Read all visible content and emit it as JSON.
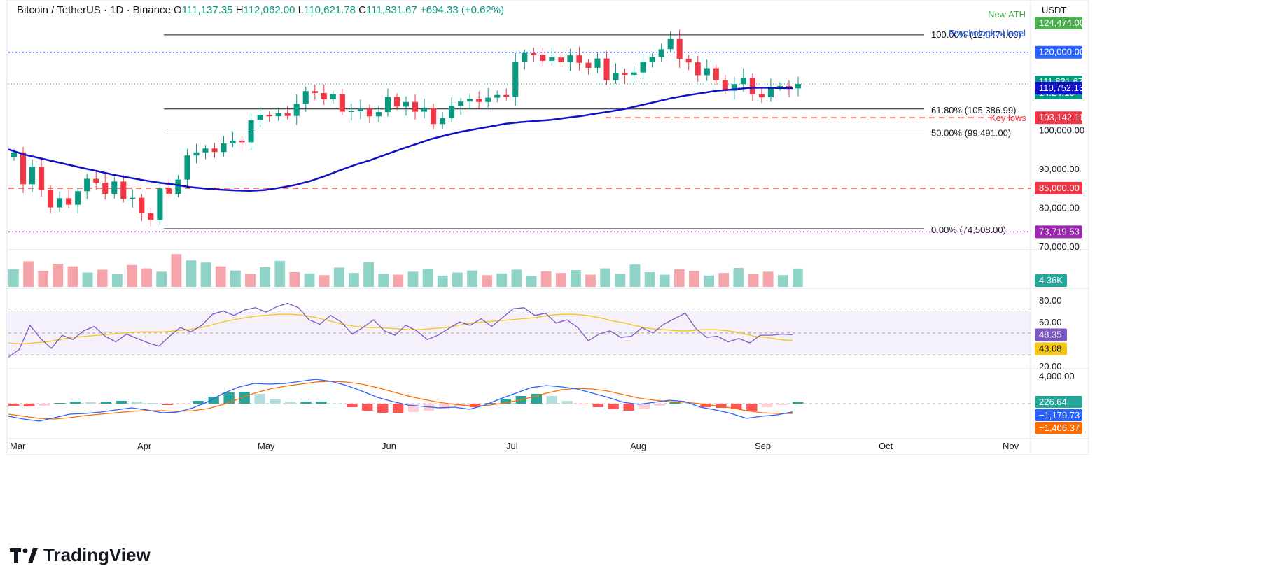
{
  "header": {
    "symbol": "Bitcoin / TetherUS · 1D · Binance",
    "open_label": "O",
    "open": "111,137.35",
    "high_label": "H",
    "high": "112,062.00",
    "low_label": "L",
    "low": "110,621.78",
    "close_label": "C",
    "close": "111,831.67",
    "change": "+694.33 (+0.62%)"
  },
  "currency": "USDT",
  "brand": "TradingView",
  "colors": {
    "up": "#089981",
    "down": "#f23645",
    "ma": "#1010c8",
    "rsi": "#7e57c2",
    "rsi_ma": "#f5c518",
    "macd": "#2962ff",
    "signal": "#ff6d00",
    "support": "#e53935",
    "resistance": "#2962ff",
    "fib": "#131722",
    "low": "#9c27b0"
  },
  "chart_data": [
    {
      "type": "candlestick",
      "panel": "price",
      "x_ticks": [
        "Mar",
        "Apr",
        "May",
        "Jun",
        "Jul",
        "Aug",
        "Sep",
        "Oct",
        "Nov"
      ],
      "y_ticks": [
        "70,000.00",
        "80,000.00",
        "90,000.00",
        "100,000.00"
      ],
      "y_range": [
        70000,
        125000
      ],
      "lines": [
        {
          "label": "100.00% (124,474.00)",
          "value": 124474,
          "style": "solid"
        },
        {
          "label": "61.80% (105,386.99)",
          "value": 105387,
          "style": "solid"
        },
        {
          "label": "50.00% (99,491.00)",
          "value": 99491,
          "style": "solid"
        },
        {
          "label": "0.00% (74,508.00)",
          "value": 74508,
          "style": "solid"
        },
        {
          "label": "Psychological level",
          "value": 120000,
          "style": "dotted"
        },
        {
          "label": "Key lows",
          "value": 103142,
          "style": "dashed"
        },
        {
          "label": "",
          "value": 85000,
          "style": "dashed"
        }
      ],
      "annotations": [
        "New ATH",
        "Psychological level",
        "Key lows"
      ],
      "price_tags": [
        {
          "text": "124,474.00",
          "value": 124474,
          "color": "#4caf50"
        },
        {
          "text": "120,000.00",
          "value": 120000,
          "color": "#2962ff"
        },
        {
          "text": "111,831.67",
          "sub": "14:24:10",
          "value": 111831.67,
          "color": "#089981"
        },
        {
          "text": "110,752.13",
          "value": 110752.13,
          "color": "#1010c8"
        },
        {
          "text": "103,142.11",
          "value": 103142.11,
          "color": "#f23645"
        },
        {
          "text": "85,000.00",
          "value": 85000,
          "color": "#f23645"
        },
        {
          "text": "73,719.53",
          "value": 73719.53,
          "color": "#9c27b0"
        }
      ],
      "series": [
        {
          "name": "Close",
          "values": [
            94200,
            86000,
            90500,
            84500,
            80000,
            82400,
            80700,
            84200,
            87400,
            86400,
            83500,
            86700,
            82200,
            82500,
            78500,
            76800,
            84900,
            83500,
            87200,
            93400,
            94200,
            95200,
            94300,
            96500,
            97200,
            96800,
            102500,
            103900,
            103500,
            104300,
            103600,
            106700,
            110000,
            109500,
            107900,
            109200,
            104700,
            104800,
            105400,
            103500,
            104600,
            108500,
            106000,
            107200,
            104700,
            105600,
            101500,
            103000,
            106200,
            107300,
            108000,
            107200,
            108300,
            109000,
            108500,
            117600,
            119800,
            119300,
            117800,
            118700,
            117500,
            119200,
            117300,
            116000,
            118400,
            112800,
            114700,
            114200,
            114800,
            117500,
            118800,
            120800,
            123400,
            118300,
            117400,
            114100,
            115900,
            112800,
            110100,
            111800,
            113400,
            109200,
            108400,
            111000,
            111300,
            110700,
            111800
          ]
        },
        {
          "name": "MA",
          "values": [
            95000,
            93700,
            92800,
            91900,
            91000,
            90100,
            89300,
            88400,
            87700,
            87000,
            86400,
            85900,
            85300,
            84900,
            84600,
            84400,
            84300,
            84500,
            85100,
            85800,
            86800,
            88100,
            89600,
            91000,
            92200,
            93600,
            95000,
            96300,
            97600,
            98600,
            99500,
            100200,
            100900,
            101600,
            102000,
            102300,
            102600,
            103100,
            103600,
            104200,
            104800,
            105500,
            106400,
            107300,
            108200,
            108900,
            109500,
            110100,
            110400,
            110800,
            110900,
            110800,
            110752
          ]
        },
        {
          "name": "Volume",
          "values": [
            4.2,
            6.1,
            3.8,
            5.5,
            4.9,
            3.4,
            4.1,
            3.0,
            5.2,
            4.4,
            3.6,
            7.8,
            6.3,
            5.8,
            4.9,
            3.9,
            3.1,
            4.7,
            6.2,
            3.5,
            3.2,
            2.8,
            4.6,
            3.3,
            5.9,
            3.1,
            2.9,
            3.6,
            4.3,
            2.7,
            3.4,
            3.9,
            2.8,
            3.2,
            4.1,
            2.6,
            3.7,
            3.3,
            4.0,
            2.9,
            4.4,
            3.1,
            5.3,
            3.5,
            2.9,
            4.2,
            3.8,
            2.7,
            3.3,
            4.5,
            3.0,
            3.6,
            2.8,
            4.36
          ]
        },
        {
          "name": "RSI",
          "values": [
            28,
            35,
            57,
            45,
            36,
            48,
            44,
            52,
            56,
            47,
            42,
            49,
            45,
            41,
            38,
            47,
            55,
            51,
            57,
            67,
            70,
            66,
            71,
            73,
            69,
            74,
            77,
            73,
            62,
            58,
            66,
            60,
            49,
            55,
            62,
            52,
            48,
            57,
            52,
            44,
            48,
            54,
            60,
            57,
            63,
            56,
            64,
            72,
            73,
            66,
            68,
            59,
            62,
            55,
            43,
            49,
            52,
            46,
            47,
            55,
            50,
            58,
            63,
            68,
            54,
            46,
            47,
            42,
            45,
            41,
            48,
            48,
            49,
            48.35
          ]
        },
        {
          "name": "RSI MA",
          "values": [
            41,
            40,
            41,
            42,
            44,
            46,
            47,
            48,
            49,
            50,
            51,
            51,
            51,
            52,
            53,
            55,
            58,
            61,
            63,
            65,
            66,
            67,
            67,
            66,
            64,
            61,
            58,
            56,
            55,
            55,
            54,
            53,
            53,
            54,
            55,
            57,
            59,
            60,
            61,
            62,
            63,
            64,
            66,
            67,
            67,
            66,
            64,
            61,
            59,
            56,
            54,
            53,
            52,
            52,
            53,
            53,
            52,
            50,
            47,
            46,
            44,
            43.08
          ]
        },
        {
          "name": "MACD",
          "values": [
            -1800,
            -2200,
            -2500,
            -2000,
            -1500,
            -1400,
            -1200,
            -900,
            -600,
            -900,
            -1300,
            -1200,
            -600,
            300,
            1500,
            2400,
            2900,
            2800,
            2900,
            3200,
            3500,
            3200,
            2600,
            1800,
            900,
            300,
            -200,
            -400,
            -600,
            -500,
            -800,
            -200,
            700,
            1500,
            2300,
            2600,
            2400,
            2100,
            1500,
            900,
            200,
            -100,
            200,
            500,
            300,
            -500,
            -900,
            -1400,
            -2100,
            -1800,
            -1600,
            -1179.73
          ]
        },
        {
          "name": "Signal",
          "values": [
            -1500,
            -1800,
            -2100,
            -2200,
            -2000,
            -1700,
            -1500,
            -1300,
            -1100,
            -1000,
            -1000,
            -1100,
            -1000,
            -700,
            -100,
            700,
            1500,
            2100,
            2500,
            2800,
            3100,
            3200,
            3100,
            2800,
            2300,
            1700,
            1100,
            600,
            200,
            -100,
            -300,
            -300,
            0,
            400,
            900,
            1500,
            2000,
            2200,
            2100,
            1800,
            1300,
            800,
            500,
            300,
            200,
            0,
            -300,
            -600,
            -1000,
            -1300,
            -1400,
            -1406.37
          ]
        },
        {
          "name": "Histogram",
          "values": [
            -300,
            -400,
            -300,
            100,
            300,
            200,
            300,
            400,
            300,
            100,
            -200,
            -100,
            400,
            1000,
            1600,
            1700,
            1400,
            700,
            300,
            300,
            300,
            0,
            -500,
            -1000,
            -1300,
            -1300,
            -1200,
            -1000,
            -800,
            -400,
            -500,
            100,
            700,
            1100,
            1400,
            1100,
            400,
            -100,
            -500,
            -800,
            -1000,
            -800,
            -300,
            200,
            100,
            -500,
            -600,
            -800,
            -1100,
            -500,
            -200,
            226.64
          ]
        }
      ],
      "volume_tag": "4.36K",
      "rsi_ticks": [
        "80.00",
        "60.00",
        "20.00"
      ],
      "rsi_tags": [
        {
          "text": "48.35",
          "color": "#7e57c2"
        },
        {
          "text": "43.08",
          "color": "#f5c518"
        }
      ],
      "macd_ticks": [
        "4,000.00"
      ],
      "macd_tags": [
        {
          "text": "226.64",
          "color": "#26a69a"
        },
        {
          "text": "−1,179.73",
          "color": "#2962ff"
        },
        {
          "text": "−1,406.37",
          "color": "#ff6d00"
        }
      ]
    }
  ]
}
